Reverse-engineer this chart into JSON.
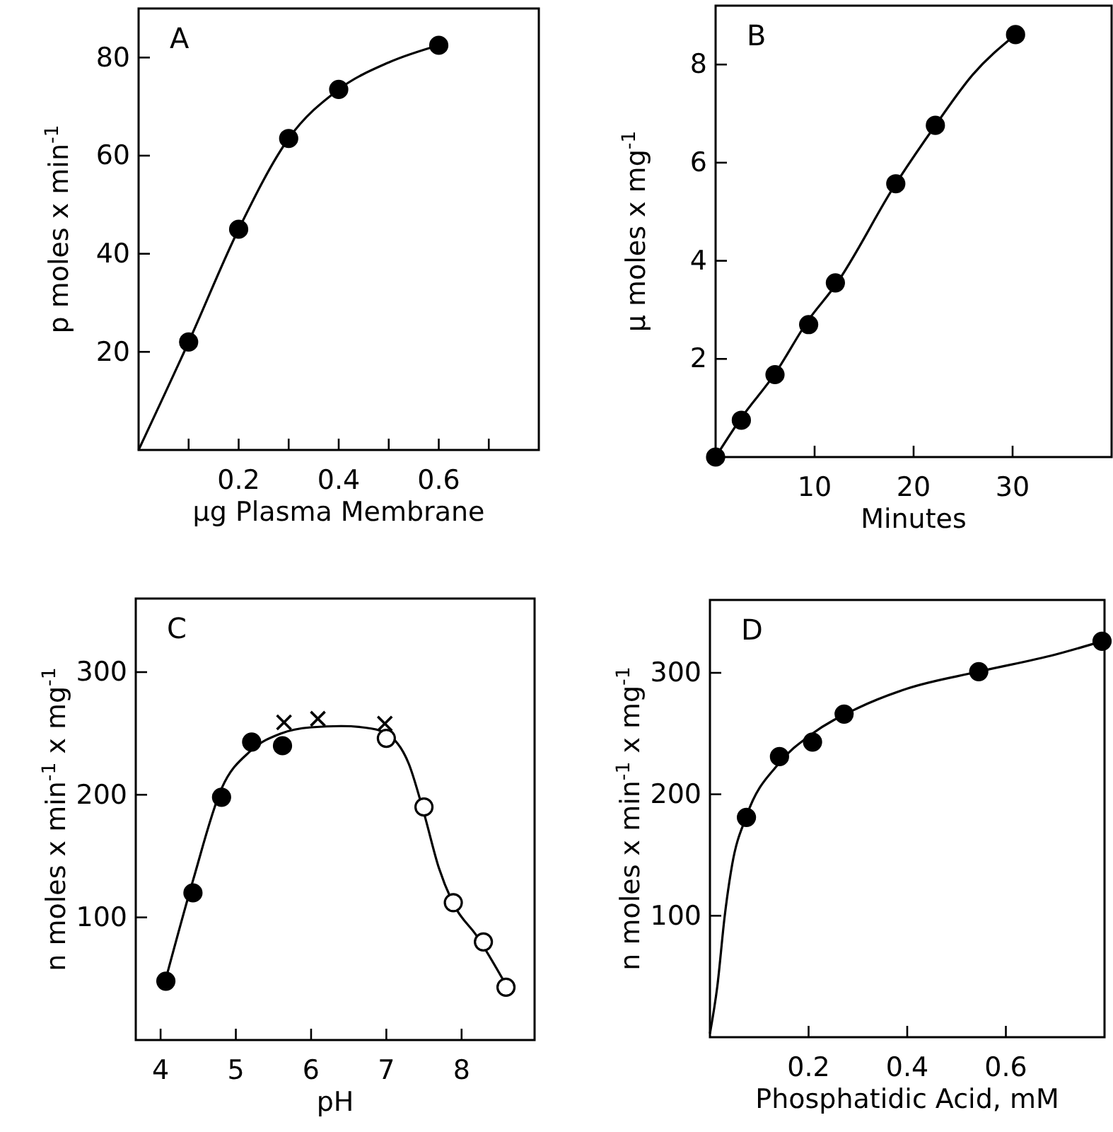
{
  "chart_data": [
    {
      "type": "scatter",
      "title": "A",
      "xlabel": "μg Plasma Membrane",
      "ylabel": "p moles x min$^{-1}$",
      "xlim": [
        0,
        0.8
      ],
      "ylim": [
        0,
        90
      ],
      "xticks": [
        {
          "value": 0.1,
          "label": null
        },
        {
          "value": 0.2,
          "label": "0.2"
        },
        {
          "value": 0.3,
          "label": null
        },
        {
          "value": 0.4,
          "label": "0.4"
        },
        {
          "value": 0.5,
          "label": null
        },
        {
          "value": 0.6,
          "label": "0.6"
        },
        {
          "value": 0.7,
          "label": null
        }
      ],
      "yticks": [
        20,
        40,
        60,
        80
      ],
      "grid": false,
      "marker": "circle",
      "series": [
        {
          "type": "line",
          "color": "#000000",
          "marker": "none",
          "x": [
            0,
            0.1,
            0.2,
            0.3,
            0.4,
            0.5,
            0.6
          ],
          "values": [
            0,
            22,
            45,
            63.5,
            73.5,
            79,
            82.5
          ]
        },
        {
          "color": "#000000",
          "x": [
            0.1,
            0.2,
            0.3,
            0.4,
            0.6
          ],
          "values": [
            22,
            45,
            63.5,
            73.5,
            82.5
          ]
        }
      ]
    },
    {
      "type": "scatter",
      "title": "B",
      "xlabel": "Minutes",
      "ylabel": "μ moles x mg$^{-1}$",
      "xlim": [
        0,
        40
      ],
      "ylim": [
        0,
        9.2
      ],
      "xticks": [
        10,
        20,
        30
      ],
      "yticks": [
        2,
        4,
        6,
        8
      ],
      "grid": false,
      "marker": "circle",
      "series": [
        {
          "type": "line",
          "color": "#000000",
          "marker": "none",
          "x": [
            0,
            2.6,
            6,
            9.4,
            12.1,
            18.2,
            22.2,
            26,
            30.3
          ],
          "values": [
            0,
            0.8,
            1.7,
            2.8,
            3.5,
            5.57,
            6.76,
            7.8,
            8.61
          ]
        },
        {
          "color": "#000000",
          "x": [
            0,
            2.6,
            6,
            9.4,
            12.1,
            18.2,
            22.2,
            30.3
          ],
          "values": [
            0,
            0.75,
            1.68,
            2.7,
            3.55,
            5.57,
            6.76,
            8.61
          ]
        }
      ]
    },
    {
      "type": "scatter",
      "title": "C",
      "xlabel": "pH",
      "ylabel": "n moles x min$^{-1}$ x mg$^{-1}$",
      "xlim": [
        3.67,
        8.97
      ],
      "ylim": [
        0,
        360
      ],
      "xticks": [
        4,
        5,
        6,
        7,
        8
      ],
      "yticks": [
        100,
        200,
        300
      ],
      "grid": false,
      "marker": "circle",
      "series": [
        {
          "type": "line",
          "color": "#000000",
          "marker": "none",
          "x": [
            4.07,
            4.43,
            4.81,
            5.2,
            5.6,
            6.0,
            6.4,
            6.8,
            7.0,
            7.3,
            7.5,
            7.7,
            7.9,
            8.2,
            8.59
          ],
          "values": [
            50,
            130,
            205,
            236,
            250,
            255,
            256,
            254,
            250,
            225,
            185,
            140,
            110,
            85,
            45
          ]
        },
        {
          "color": "#000000",
          "x": [
            4.07,
            4.43,
            4.81,
            5.21,
            5.62
          ],
          "values": [
            48,
            120,
            198,
            243,
            240
          ]
        },
        {
          "type": "scatter",
          "color": "#000000",
          "marker": "cross",
          "x": [
            5.64,
            6.09,
            6.98
          ],
          "values": [
            259,
            262,
            258
          ]
        },
        {
          "color": "#ffffff",
          "x": [
            7.0,
            7.5,
            7.89,
            8.29,
            8.59
          ],
          "values": [
            246,
            190,
            112,
            80,
            43
          ]
        }
      ]
    },
    {
      "type": "scatter",
      "title": "D",
      "xlabel": "Phosphatidic Acid, mM",
      "ylabel": "n moles x min$^{-1}$ x mg$^{-1}$",
      "xlim": [
        0,
        0.8
      ],
      "ylim": [
        0,
        360
      ],
      "xticks": [
        0.2,
        0.4,
        0.6
      ],
      "yticks": [
        100,
        200,
        300
      ],
      "grid": false,
      "marker": "circle",
      "series": [
        {
          "type": "line",
          "color": "#000000",
          "marker": "none",
          "x": [
            0,
            0.015,
            0.03,
            0.045,
            0.074,
            0.141,
            0.208,
            0.3,
            0.4,
            0.545,
            0.7,
            0.795
          ],
          "values": [
            3,
            42,
            100,
            142,
            182,
            226,
            250,
            271,
            287,
            301,
            315,
            326
          ]
        },
        {
          "color": "#000000",
          "x": [
            0.074,
            0.141,
            0.208,
            0.272,
            0.545,
            0.795
          ],
          "values": [
            181,
            231,
            243,
            266,
            301,
            326
          ]
        }
      ]
    }
  ]
}
